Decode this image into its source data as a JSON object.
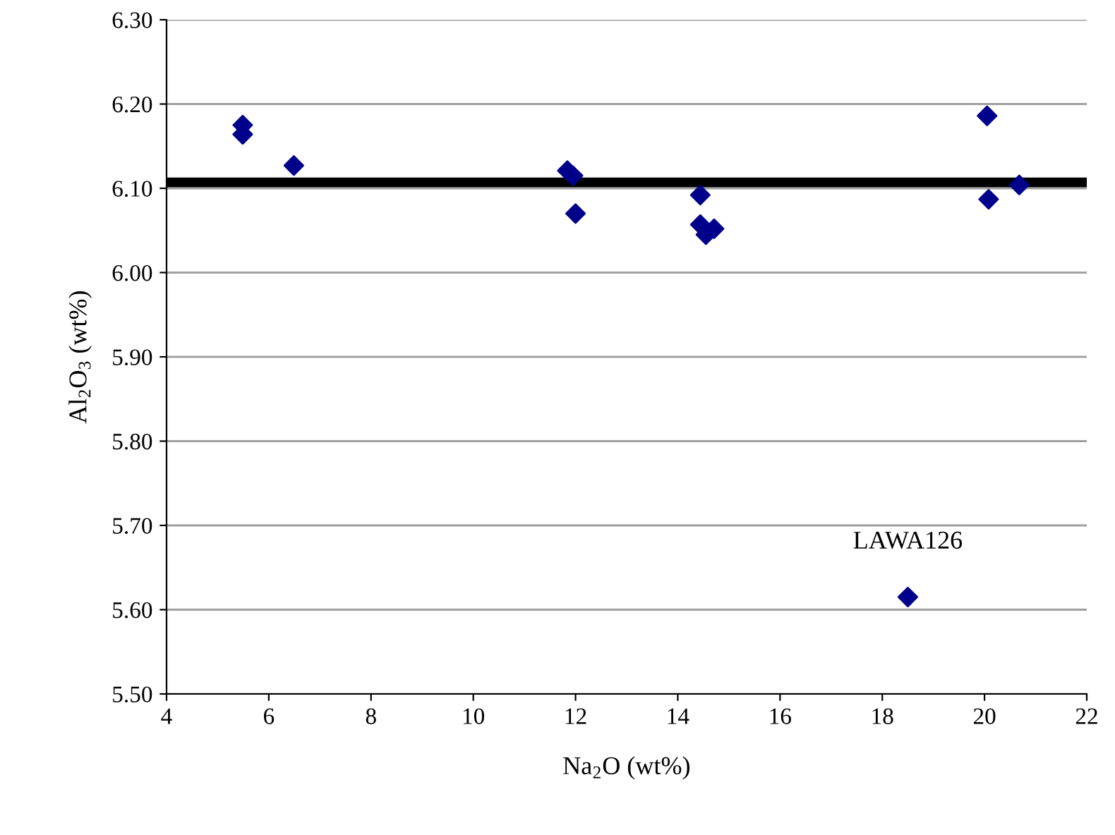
{
  "chart_data": {
    "type": "scatter",
    "xlabel": "Na$_{2}$O (wt%)",
    "ylabel": "Al$_{2}$O$_{3}$ (wt%)",
    "x": [
      5.49,
      5.49,
      6.49,
      11.84,
      11.95,
      12.0,
      14.44,
      14.44,
      14.55,
      14.71,
      20.05,
      20.08,
      20.68,
      18.5
    ],
    "series": [
      {
        "color": "#00008b",
        "values": [
          6.175,
          6.164,
          6.127,
          6.121,
          6.115,
          6.07,
          6.092,
          6.057,
          6.045,
          6.052,
          6.186,
          6.087,
          6.104,
          5.615
        ]
      }
    ],
    "marker": "diamond",
    "annotations": [
      {
        "text": "LAWA126",
        "x": 18.5,
        "y": 5.615
      }
    ],
    "ref_lines": [
      {
        "axis": "y",
        "value": 6.107,
        "color": "#000000"
      }
    ],
    "xlim": [
      4,
      22
    ],
    "xticks": [
      4,
      6,
      8,
      10,
      12,
      14,
      16,
      18,
      20,
      22
    ],
    "ylim": [
      5.5,
      6.3
    ],
    "yticks": [
      {
        "value": 5.5,
        "label": "5.50"
      },
      {
        "value": 5.6,
        "label": "5.60"
      },
      {
        "value": 5.7,
        "label": "5.70"
      },
      {
        "value": 5.8,
        "label": "5.80"
      },
      {
        "value": 5.9,
        "label": "5.90"
      },
      {
        "value": 6.0,
        "label": "6.00"
      },
      {
        "value": 6.1,
        "label": "6.10"
      },
      {
        "value": 6.2,
        "label": "6.20"
      },
      {
        "value": 6.3,
        "label": "6.30"
      }
    ],
    "grid": "y"
  }
}
